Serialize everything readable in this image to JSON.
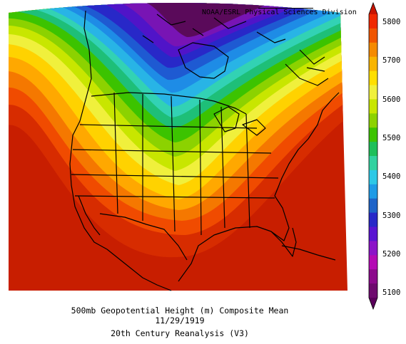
{
  "credit": "NOAA/ESRL Physical Sciences Division",
  "caption": {
    "line1": "500mb Geopotential Height (m) Composite Mean",
    "line2": "11/29/1919",
    "line3": "20th Century Reanalysis (V3)"
  },
  "colorbar": {
    "labels": [
      "5800",
      "5700",
      "5600",
      "5500",
      "5400",
      "5300",
      "5200",
      "5100"
    ],
    "colors": [
      "#f02800",
      "#f05500",
      "#f58a00",
      "#f8b400",
      "#ffdf00",
      "#f0f03c",
      "#c8e600",
      "#8cd200",
      "#3cc300",
      "#1ebf5a",
      "#32d2a0",
      "#2dc8e6",
      "#1e9be6",
      "#1e64c8",
      "#2828c8",
      "#5a14d2",
      "#8c14c8",
      "#b40ab4",
      "#8c0a8c",
      "#6e0a6e"
    ],
    "arrow_top": "#c81400",
    "arrow_bottom": "#5a005a"
  },
  "map": {
    "background": "#c81e00",
    "bands": [
      "#b41e00",
      "#d22800",
      "#f04b00",
      "#f57800",
      "#ffa800",
      "#ffd200",
      "#f0f000",
      "#c8e600",
      "#8cd200",
      "#3cc300",
      "#1ebf78",
      "#32d2b4",
      "#28b4e6",
      "#1e8ce6",
      "#1e5ad2",
      "#2828c8",
      "#5014c8",
      "#7814b4",
      "#5a0a8c",
      "#5a0a5a"
    ]
  }
}
